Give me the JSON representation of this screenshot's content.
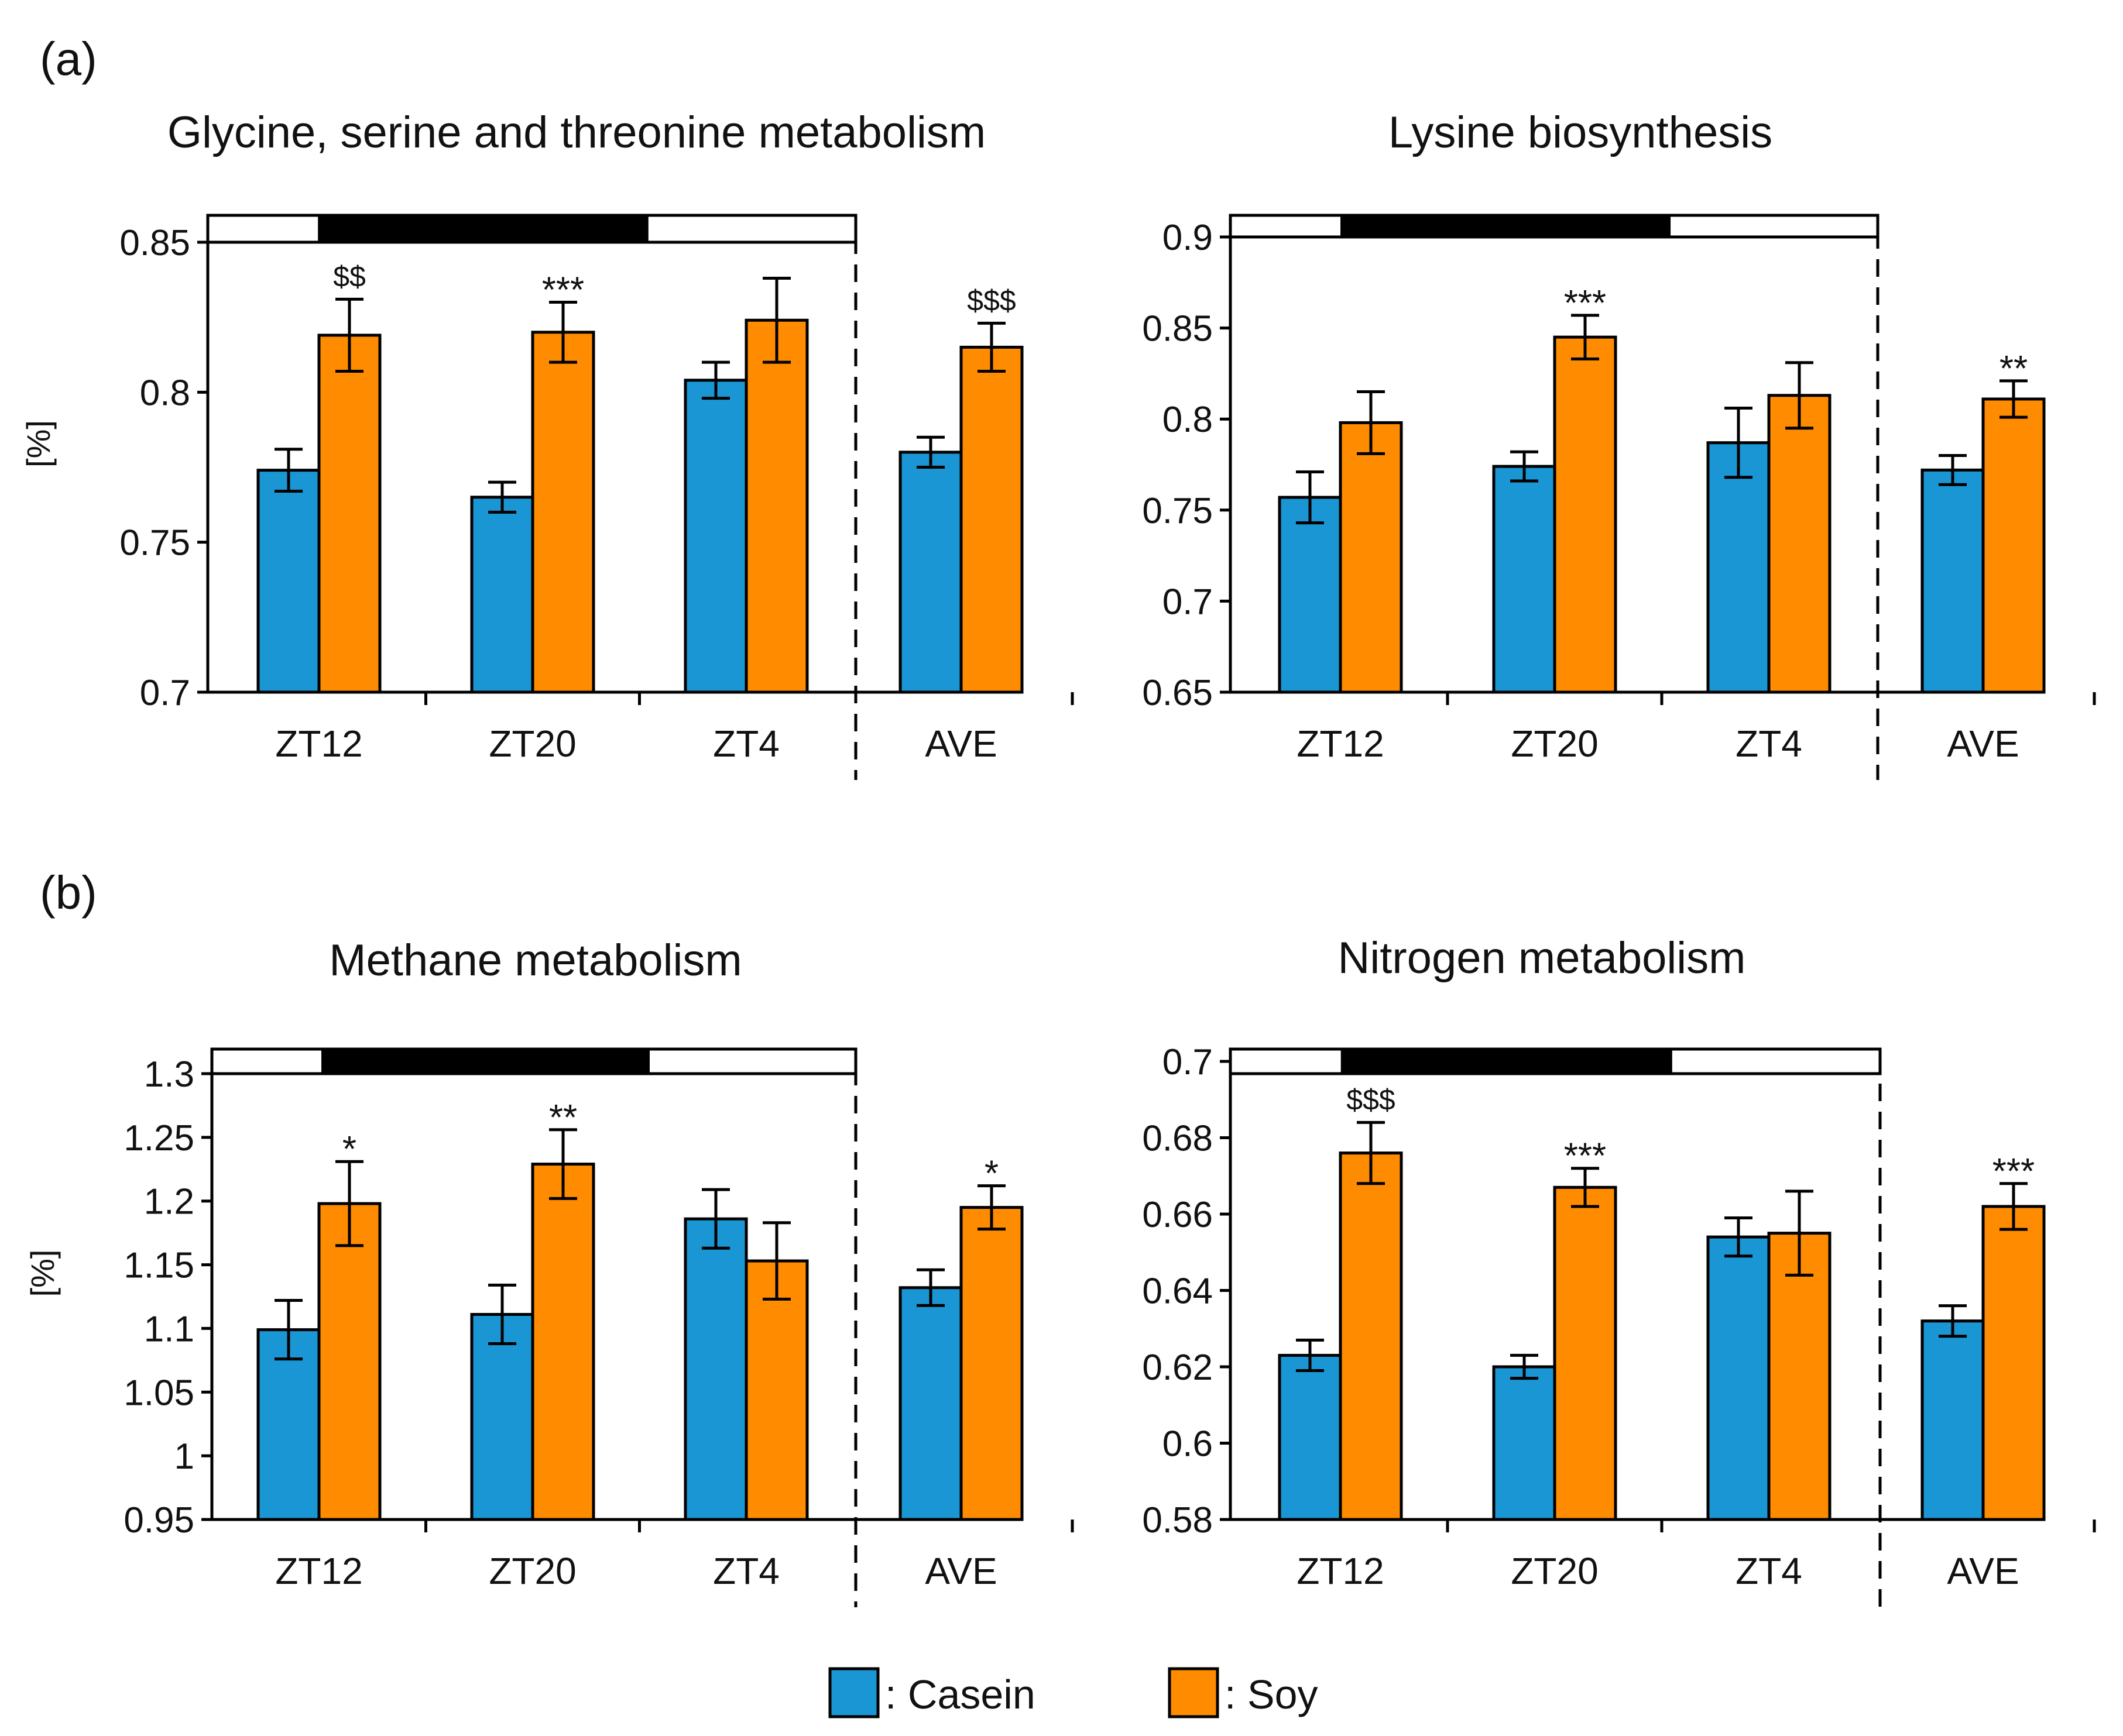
{
  "figure": {
    "panel_a_label": "(a)",
    "panel_b_label": "(b)",
    "legend": [
      {
        "label": ": Casein",
        "color": "#1B96D4"
      },
      {
        "label": ": Soy",
        "color": "#FF8C00"
      }
    ],
    "colors": {
      "casein": "#1B96D4",
      "soy": "#FF8C00",
      "axis": "#000000",
      "light_period": "#ffffff",
      "dark_period": "#000000"
    }
  },
  "chart_data": [
    {
      "type": "bar",
      "title": "Glycine, serine and threonine metabolism",
      "ylabel": "[%]",
      "xlabel": "",
      "ylim": [
        0.7,
        0.85
      ],
      "yticks": [
        0.7,
        0.75,
        0.8,
        0.85
      ],
      "ytick_labels": [
        "0.7",
        "0.75",
        "0.8",
        "0.85"
      ],
      "categories": [
        "ZT12",
        "ZT20",
        "ZT4",
        "AVE"
      ],
      "series": [
        {
          "name": "Casein",
          "values": [
            0.774,
            0.765,
            0.804,
            0.78
          ],
          "errors": [
            0.007,
            0.005,
            0.006,
            0.005
          ]
        },
        {
          "name": "Soy",
          "values": [
            0.819,
            0.82,
            0.824,
            0.815
          ],
          "errors": [
            0.012,
            0.01,
            0.014,
            0.008
          ]
        }
      ],
      "annotations": [
        "$$",
        "***",
        "",
        "$$$"
      ],
      "light_dark_bar": [
        "light",
        "dark",
        "light"
      ]
    },
    {
      "type": "bar",
      "title": "Lysine biosynthesis",
      "ylabel": "",
      "xlabel": "",
      "ylim": [
        0.65,
        0.9
      ],
      "yticks": [
        0.65,
        0.7,
        0.75,
        0.8,
        0.85,
        0.9
      ],
      "ytick_labels": [
        "0.65",
        "0.7",
        "0.75",
        "0.8",
        "0.85",
        "0.9"
      ],
      "categories": [
        "ZT12",
        "ZT20",
        "ZT4",
        "AVE"
      ],
      "series": [
        {
          "name": "Casein",
          "values": [
            0.757,
            0.774,
            0.787,
            0.772
          ],
          "errors": [
            0.014,
            0.008,
            0.019,
            0.008
          ]
        },
        {
          "name": "Soy",
          "values": [
            0.798,
            0.845,
            0.813,
            0.811
          ],
          "errors": [
            0.017,
            0.012,
            0.018,
            0.01
          ]
        }
      ],
      "annotations": [
        "",
        "***",
        "",
        "**"
      ],
      "light_dark_bar": [
        "light",
        "dark",
        "light"
      ]
    },
    {
      "type": "bar",
      "title": "Methane metabolism",
      "ylabel": "[%]",
      "xlabel": "",
      "ylim": [
        0.95,
        1.3
      ],
      "yticks": [
        0.95,
        1.0,
        1.05,
        1.1,
        1.15,
        1.2,
        1.25,
        1.3
      ],
      "ytick_labels": [
        "0.95",
        "1",
        "1.05",
        "1.1",
        "1.15",
        "1.2",
        "1.25",
        "1.3"
      ],
      "categories": [
        "ZT12",
        "ZT20",
        "ZT4",
        "AVE"
      ],
      "series": [
        {
          "name": "Casein",
          "values": [
            1.099,
            1.111,
            1.186,
            1.132
          ],
          "errors": [
            0.023,
            0.023,
            0.023,
            0.014
          ]
        },
        {
          "name": "Soy",
          "values": [
            1.198,
            1.229,
            1.153,
            1.195
          ],
          "errors": [
            0.033,
            0.027,
            0.03,
            0.017
          ]
        }
      ],
      "annotations": [
        "*",
        "**",
        "",
        "*"
      ],
      "light_dark_bar": [
        "light",
        "dark",
        "light"
      ]
    },
    {
      "type": "bar",
      "title": "Nitrogen metabolism",
      "ylabel": "",
      "xlabel": "",
      "ylim": [
        0.58,
        0.7
      ],
      "yticks": [
        0.58,
        0.6,
        0.62,
        0.64,
        0.66,
        0.68,
        0.7
      ],
      "ytick_labels": [
        "0.58",
        "0.6",
        "0.62",
        "0.64",
        "0.66",
        "0.68",
        "0.7"
      ],
      "categories": [
        "ZT12",
        "ZT20",
        "ZT4",
        "AVE"
      ],
      "series": [
        {
          "name": "Casein",
          "values": [
            0.623,
            0.62,
            0.654,
            0.632
          ],
          "errors": [
            0.004,
            0.003,
            0.005,
            0.004
          ]
        },
        {
          "name": "Soy",
          "values": [
            0.676,
            0.667,
            0.655,
            0.662
          ],
          "errors": [
            0.008,
            0.005,
            0.011,
            0.006
          ]
        }
      ],
      "annotations": [
        "$$$",
        "***",
        "",
        "***"
      ],
      "light_dark_bar": [
        "light",
        "dark",
        "light"
      ]
    }
  ]
}
